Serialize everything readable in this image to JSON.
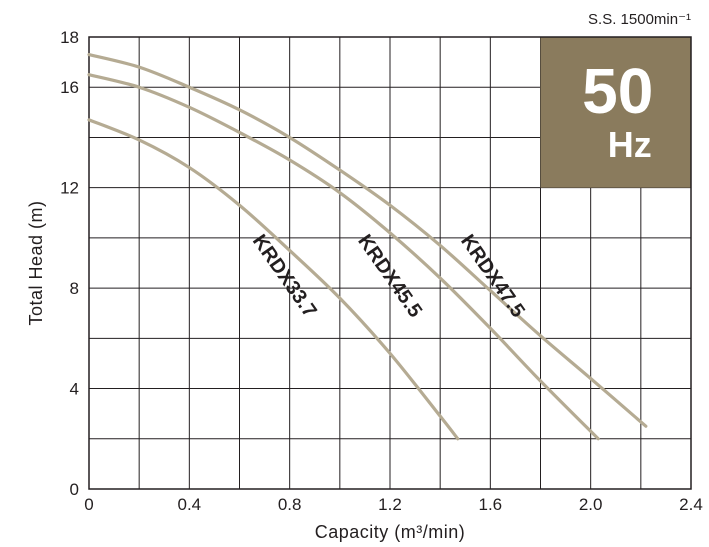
{
  "chart_data": {
    "type": "line",
    "xlabel": "Capacity (m³/min)",
    "ylabel": "Total Head (m)",
    "xlim": [
      0,
      2.4
    ],
    "ylim": [
      0,
      18
    ],
    "grid": true,
    "x_ticks": [
      "0",
      "0.4",
      "0.8",
      "1.2",
      "1.6",
      "2.0",
      "2.4"
    ],
    "y_ticks": [
      "0",
      "4",
      "8",
      "12",
      "16",
      "18"
    ],
    "annotation": "S.S. 1500min⁻¹",
    "badge": {
      "value": "50",
      "unit": "Hz",
      "color": "#8a7b5d"
    },
    "curve_color": "#b5ab93",
    "series": [
      {
        "name": "KRDX33.7",
        "x": [
          0,
          0.2,
          0.4,
          0.6,
          0.8,
          1.0,
          1.2,
          1.4,
          1.47
        ],
        "y": [
          14.7,
          13.9,
          12.8,
          11.3,
          9.5,
          7.6,
          5.4,
          2.9,
          2.0
        ]
      },
      {
        "name": "KRDX45.5",
        "x": [
          0,
          0.2,
          0.4,
          0.6,
          0.8,
          1.0,
          1.2,
          1.4,
          1.6,
          1.8,
          2.03
        ],
        "y": [
          16.5,
          16.0,
          15.2,
          14.2,
          13.1,
          11.8,
          10.2,
          8.4,
          6.4,
          4.3,
          2.0
        ]
      },
      {
        "name": "KRDX47.5",
        "x": [
          0,
          0.2,
          0.4,
          0.6,
          0.8,
          1.0,
          1.2,
          1.4,
          1.6,
          1.8,
          2.0,
          2.22
        ],
        "y": [
          17.3,
          16.8,
          16.0,
          15.1,
          14.0,
          12.7,
          11.3,
          9.7,
          7.9,
          6.1,
          4.4,
          2.5
        ]
      }
    ]
  }
}
